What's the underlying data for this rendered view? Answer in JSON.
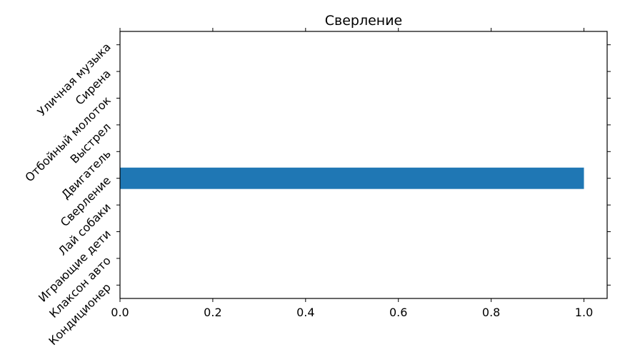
{
  "chart_data": {
    "type": "bar",
    "orientation": "horizontal",
    "title": "Сверление",
    "xlabel": "",
    "ylabel": "",
    "categories": [
      "Кондиционер",
      "Клаксон авто",
      "Играющие дети",
      "Лай собаки",
      "Сверление",
      "Двигатель",
      "Выстрел",
      "Отбойный молоток",
      "Сирена",
      "Уличная музыка"
    ],
    "values": [
      0,
      0,
      0,
      0,
      1.0,
      0,
      0,
      0,
      0,
      0
    ],
    "xlim": [
      0,
      1.05
    ],
    "xticks": [
      "0.0",
      "0.2",
      "0.4",
      "0.6",
      "0.8",
      "1.0"
    ],
    "bar_color": "#1f77b4",
    "grid": false,
    "legend": "none"
  }
}
